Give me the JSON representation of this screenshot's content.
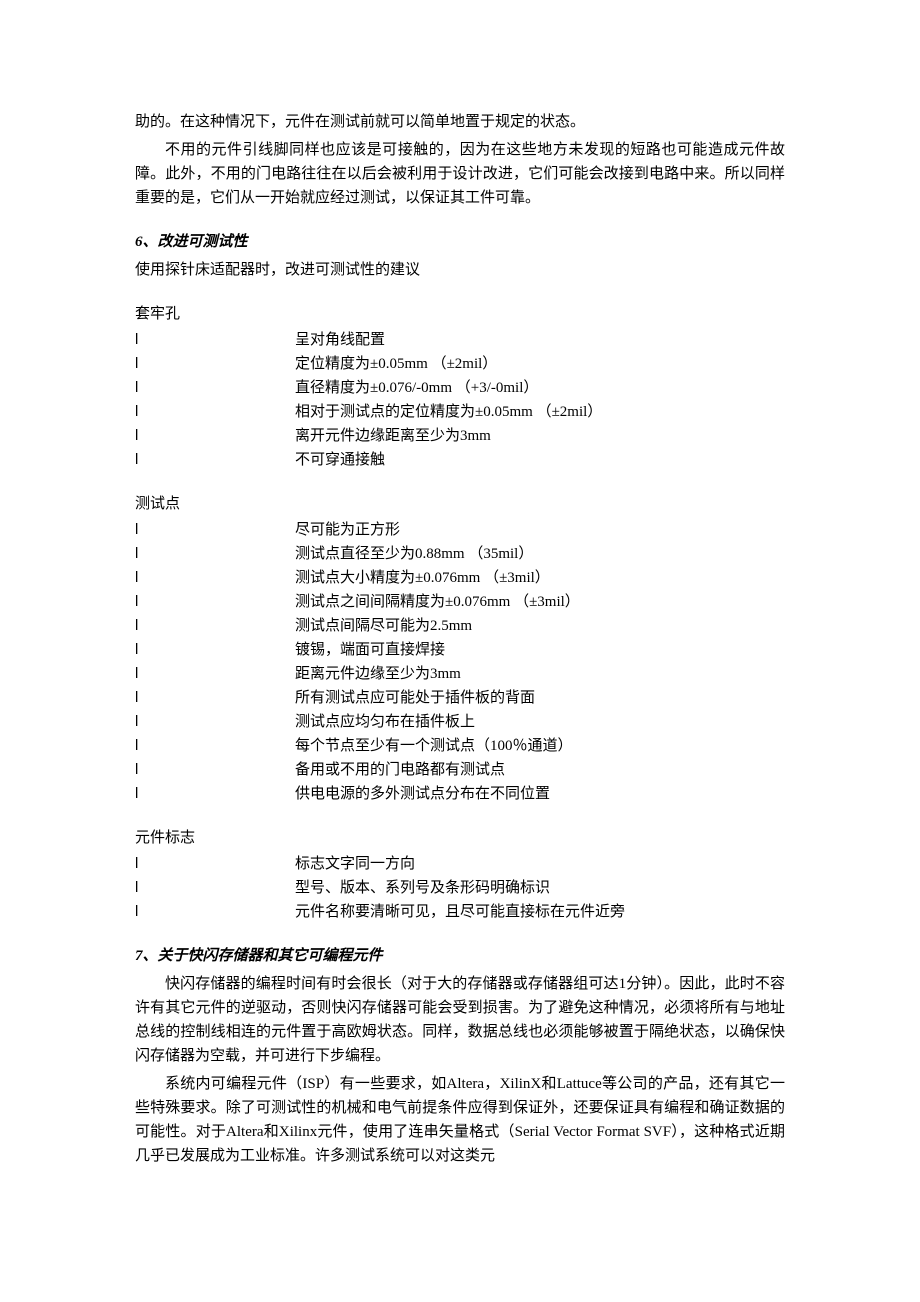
{
  "intro": {
    "p1": "助的。在这种情况下，元件在测试前就可以简单地置于规定的状态。",
    "p2": "不用的元件引线脚同样也应该是可接触的，因为在这些地方未发现的短路也可能造成元件故障。此外，不用的门电路往往在以后会被利用于设计改进，它们可能会改接到电路中来。所以同样重要的是，它们从一开始就应经过测试，以保证其工件可靠。"
  },
  "section6": {
    "heading": "6、改进可测试性",
    "subtext": "使用探针床适配器时，改进可测试性的建议"
  },
  "blocks": [
    {
      "title": "套牢孔",
      "items": [
        {
          "label": "l",
          "text": "呈对角线配置"
        },
        {
          "label": "l",
          "text": "定位精度为±0.05mm （±2mil）"
        },
        {
          "label": "l",
          "text": "直径精度为±0.076/-0mm （+3/-0mil）"
        },
        {
          "label": "l",
          "text": "相对于测试点的定位精度为±0.05mm （±2mil）"
        },
        {
          "label": "l",
          "text": "离开元件边缘距离至少为3mm"
        },
        {
          "label": "l",
          "text": "不可穿通接触"
        }
      ]
    },
    {
      "title": "测试点",
      "items": [
        {
          "label": "l",
          "text": "尽可能为正方形"
        },
        {
          "label": "l",
          "text": "测试点直径至少为0.88mm （35mil）"
        },
        {
          "label": "l",
          "text": "测试点大小精度为±0.076mm （±3mil）"
        },
        {
          "label": "l",
          "text": "测试点之间间隔精度为±0.076mm （±3mil）"
        },
        {
          "label": "l",
          "text": "测试点间隔尽可能为2.5mm"
        },
        {
          "label": "l",
          "text": "镀锡，端面可直接焊接"
        },
        {
          "label": "l",
          "text": "距离元件边缘至少为3mm"
        },
        {
          "label": "l",
          "text": "所有测试点应可能处于插件板的背面"
        },
        {
          "label": "l",
          "text": "测试点应均匀布在插件板上"
        },
        {
          "label": "l",
          "text": "每个节点至少有一个测试点（100％通道）"
        },
        {
          "label": "l",
          "text": "备用或不用的门电路都有测试点"
        },
        {
          "label": "l",
          "text": "供电电源的多外测试点分布在不同位置"
        }
      ]
    },
    {
      "title": "元件标志",
      "items": [
        {
          "label": "l",
          "text": "标志文字同一方向"
        },
        {
          "label": "l",
          "text": "型号、版本、系列号及条形码明确标识"
        },
        {
          "label": "l",
          "text": "元件名称要清晰可见，且尽可能直接标在元件近旁"
        }
      ]
    }
  ],
  "section7": {
    "heading": "7、关于快闪存储器和其它可编程元件",
    "p1": "快闪存储器的编程时间有时会很长（对于大的存储器或存储器组可达1分钟）。因此，此时不容许有其它元件的逆驱动，否则快闪存储器可能会受到损害。为了避免这种情况，必须将所有与地址总线的控制线相连的元件置于高欧姆状态。同样，数据总线也必须能够被置于隔绝状态，以确保快闪存储器为空载，并可进行下步编程。",
    "p2": "系统内可编程元件（ISP）有一些要求，如Altera，XilinX和Lattuce等公司的产品，还有其它一些特殊要求。除了可测试性的机械和电气前提条件应得到保证外，还要保证具有编程和确证数据的可能性。对于Altera和Xilinx元件，使用了连串矢量格式（Serial Vector Format SVF），这种格式近期几乎已发展成为工业标准。许多测试系统可以对这类元"
  }
}
